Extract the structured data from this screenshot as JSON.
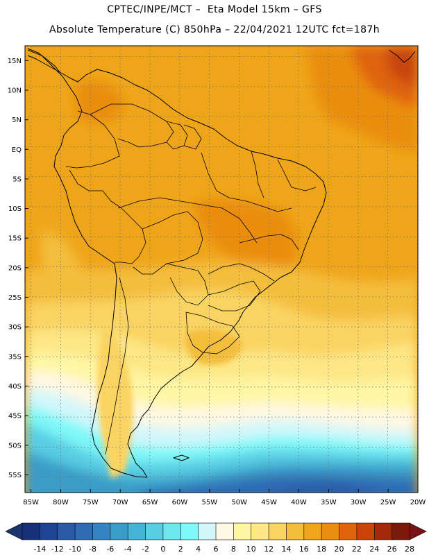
{
  "header": {
    "line1": "CPTEC/INPE/MCT –  Eta Model 15km – GFS",
    "line2": "Absolute Temperature (C) 850hPa – 22/04/2021 12UTC fct=187h"
  },
  "map": {
    "lat_labels": [
      "15N",
      "10N",
      "5N",
      "EQ",
      "5S",
      "10S",
      "15S",
      "20S",
      "25S",
      "30S",
      "35S",
      "40S",
      "45S",
      "50S",
      "55S"
    ],
    "lon_labels": [
      "85W",
      "80W",
      "75W",
      "70W",
      "65W",
      "60W",
      "55W",
      "50W",
      "45W",
      "40W",
      "35W",
      "30W",
      "25W",
      "20W"
    ],
    "lat_range": [
      17.5,
      -58
    ],
    "lon_range": [
      -86,
      -20
    ]
  },
  "colorbar": {
    "labels": [
      "-14",
      "-12",
      "-10",
      "-8",
      "-6",
      "-4",
      "-2",
      "0",
      "2",
      "4",
      "6",
      "8",
      "10",
      "12",
      "14",
      "16",
      "18",
      "20",
      "22",
      "24",
      "26",
      "28"
    ],
    "colors": [
      "#16307a",
      "#1d4592",
      "#2b5aa6",
      "#2f6cb4",
      "#3384c0",
      "#3a9cc8",
      "#45b4d6",
      "#58cde3",
      "#6fe7ee",
      "#7ef8f8",
      "#d2f7fb",
      "#fff8e2",
      "#fff6a4",
      "#fde786",
      "#fad462",
      "#f4be3c",
      "#efa51a",
      "#ea8d10",
      "#e0640b",
      "#c84408",
      "#a3290a",
      "#7a1a0a"
    ],
    "under_color": "#1b3470",
    "over_color": "#7a1216"
  }
}
